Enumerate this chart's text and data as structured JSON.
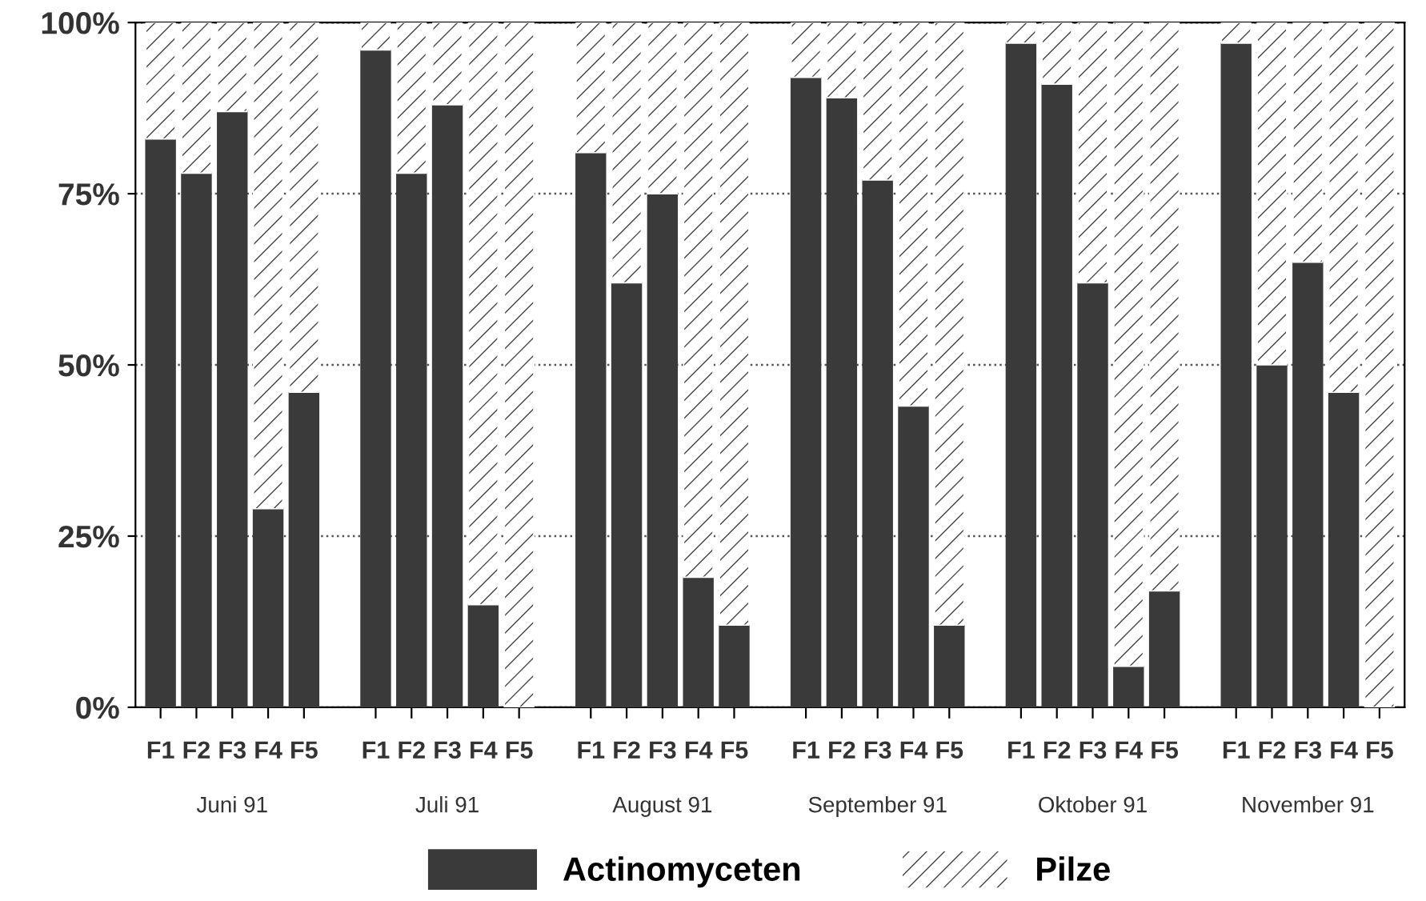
{
  "chart_data": {
    "type": "bar",
    "stacked": true,
    "categories": [
      "F1",
      "F2",
      "F3",
      "F4",
      "F5",
      "F1",
      "F2",
      "F3",
      "F4",
      "F5",
      "F1",
      "F2",
      "F3",
      "F4",
      "F5",
      "F1",
      "F2",
      "F3",
      "F4",
      "F5",
      "F1",
      "F2",
      "F3",
      "F4",
      "F5",
      "F1",
      "F2",
      "F3",
      "F4",
      "F5"
    ],
    "series": [
      {
        "name": "Actinomyceten",
        "color": "#3a3a3a",
        "values": [
          83,
          78,
          87,
          29,
          46,
          96,
          78,
          88,
          15,
          0,
          81,
          62,
          75,
          19,
          12,
          92,
          89,
          77,
          44,
          12,
          97,
          91,
          62,
          6,
          17,
          97,
          50,
          65,
          46,
          0
        ]
      },
      {
        "name": "Pilze",
        "color": "#ffffff",
        "values": [
          17,
          22,
          13,
          71,
          54,
          4,
          22,
          12,
          85,
          100,
          19,
          38,
          25,
          81,
          88,
          8,
          11,
          23,
          56,
          88,
          3,
          9,
          38,
          94,
          83,
          3,
          50,
          35,
          54,
          100
        ]
      }
    ],
    "annotations": [
      "Juni 91",
      "Juli 91",
      "August 91",
      "September 91",
      "Oktober 91",
      "November 91"
    ],
    "ylim": [
      0,
      100
    ],
    "yticks": [
      {
        "value": 0,
        "label": "0%"
      },
      {
        "value": 25,
        "label": "25%"
      },
      {
        "value": 50,
        "label": "50%"
      },
      {
        "value": 75,
        "label": "75%"
      },
      {
        "value": 100,
        "label": "100%"
      }
    ],
    "grid": "y",
    "legend": "bottom"
  }
}
